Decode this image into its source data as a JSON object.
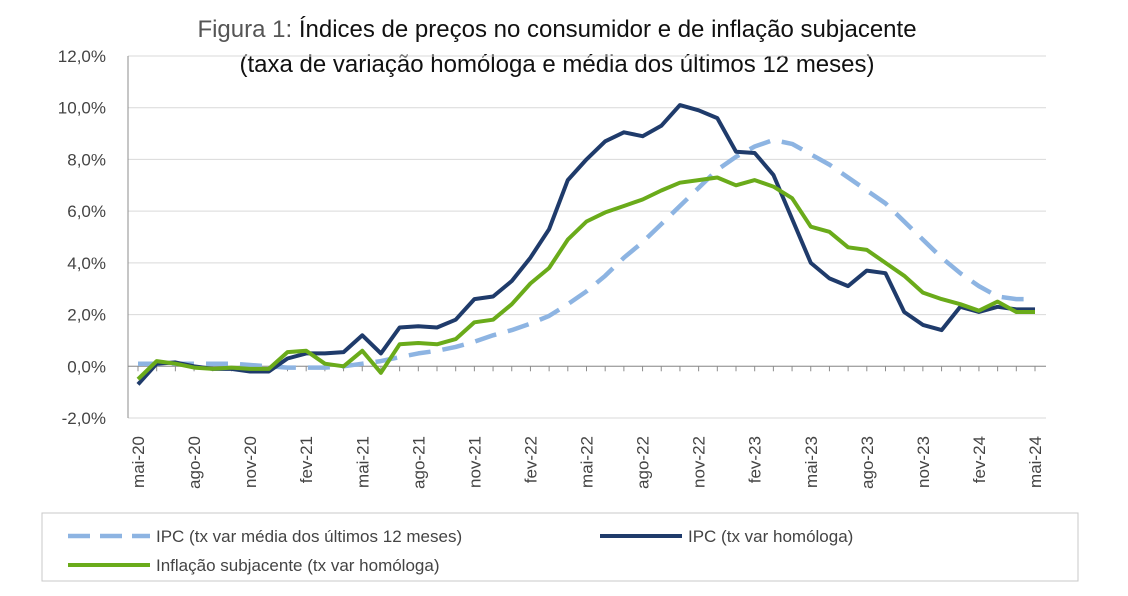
{
  "chart_data": {
    "type": "line",
    "title_prefix": "Figura 1:",
    "title_line1": "Índices de preços no consumidor e de inflação subjacente",
    "title_line2": "(taxa de variação homóloga e média dos últimos 12 meses)",
    "xlabel": "",
    "ylabel": "",
    "ylim": [
      -2,
      12
    ],
    "yticks": [
      -2,
      0,
      2,
      4,
      6,
      8,
      10,
      12
    ],
    "ytick_labels": [
      "-2,0%",
      "0,0%",
      "2,0%",
      "4,0%",
      "6,0%",
      "8,0%",
      "10,0%",
      "12,0%"
    ],
    "x": [
      "mai-20",
      "jun-20",
      "jul-20",
      "ago-20",
      "set-20",
      "out-20",
      "nov-20",
      "dez-20",
      "jan-21",
      "fev-21",
      "mar-21",
      "abr-21",
      "mai-21",
      "jun-21",
      "jul-21",
      "ago-21",
      "set-21",
      "out-21",
      "nov-21",
      "dez-21",
      "jan-22",
      "fev-22",
      "mar-22",
      "abr-22",
      "mai-22",
      "jun-22",
      "jul-22",
      "ago-22",
      "set-22",
      "out-22",
      "nov-22",
      "dez-22",
      "jan-23",
      "fev-23",
      "mar-23",
      "abr-23",
      "mai-23",
      "jun-23",
      "jul-23",
      "ago-23",
      "set-23",
      "out-23",
      "nov-23",
      "dez-23",
      "jan-24",
      "fev-24",
      "mar-24",
      "abr-24",
      "mai-24"
    ],
    "xtick_labels": [
      "mai-20",
      "ago-20",
      "nov-20",
      "fev-21",
      "mai-21",
      "ago-21",
      "nov-21",
      "fev-22",
      "mai-22",
      "ago-22",
      "nov-22",
      "fev-23",
      "mai-23",
      "ago-23",
      "nov-23",
      "fev-24",
      "mai-24"
    ],
    "legend_position": "bottom",
    "series": [
      {
        "name": "IPC (tx var média dos últimos 12 meses)",
        "color": "#8DB4E2",
        "style": "dashed",
        "values": [
          0.1,
          0.1,
          0.1,
          0.1,
          0.1,
          0.1,
          0.05,
          0.0,
          -0.05,
          -0.05,
          -0.05,
          0.0,
          0.1,
          0.2,
          0.35,
          0.5,
          0.6,
          0.75,
          0.95,
          1.2,
          1.4,
          1.65,
          1.95,
          2.4,
          2.9,
          3.5,
          4.2,
          4.8,
          5.5,
          6.2,
          6.9,
          7.6,
          8.1,
          8.5,
          8.75,
          8.6,
          8.2,
          7.8,
          7.3,
          6.8,
          6.3,
          5.6,
          4.9,
          4.2,
          3.6,
          3.1,
          2.7,
          2.6,
          2.6
        ]
      },
      {
        "name": "IPC (tx var homóloga)",
        "color": "#1F3B6B",
        "style": "solid",
        "values": [
          -0.7,
          0.1,
          0.15,
          0.0,
          -0.1,
          -0.1,
          -0.2,
          -0.2,
          0.3,
          0.5,
          0.5,
          0.55,
          1.2,
          0.5,
          1.5,
          1.55,
          1.5,
          1.8,
          2.6,
          2.7,
          3.3,
          4.2,
          5.3,
          7.2,
          8.0,
          8.7,
          9.05,
          8.9,
          9.3,
          10.1,
          9.9,
          9.6,
          8.3,
          8.25,
          7.4,
          5.7,
          4.0,
          3.4,
          3.1,
          3.7,
          3.6,
          2.1,
          1.6,
          1.4,
          2.3,
          2.1,
          2.3,
          2.2,
          2.2
        ]
      },
      {
        "name": "Inflação subjacente (tx var homóloga)",
        "color": "#6AAB1A",
        "style": "solid",
        "values": [
          -0.5,
          0.2,
          0.1,
          -0.05,
          -0.1,
          -0.05,
          -0.1,
          -0.1,
          0.55,
          0.6,
          0.1,
          0.0,
          0.6,
          -0.25,
          0.85,
          0.9,
          0.85,
          1.05,
          1.7,
          1.8,
          2.4,
          3.2,
          3.8,
          4.9,
          5.6,
          5.95,
          6.2,
          6.45,
          6.8,
          7.1,
          7.2,
          7.3,
          7.0,
          7.2,
          6.95,
          6.5,
          5.4,
          5.2,
          4.6,
          4.5,
          4.0,
          3.5,
          2.85,
          2.6,
          2.4,
          2.15,
          2.5,
          2.1,
          2.1
        ]
      }
    ]
  }
}
